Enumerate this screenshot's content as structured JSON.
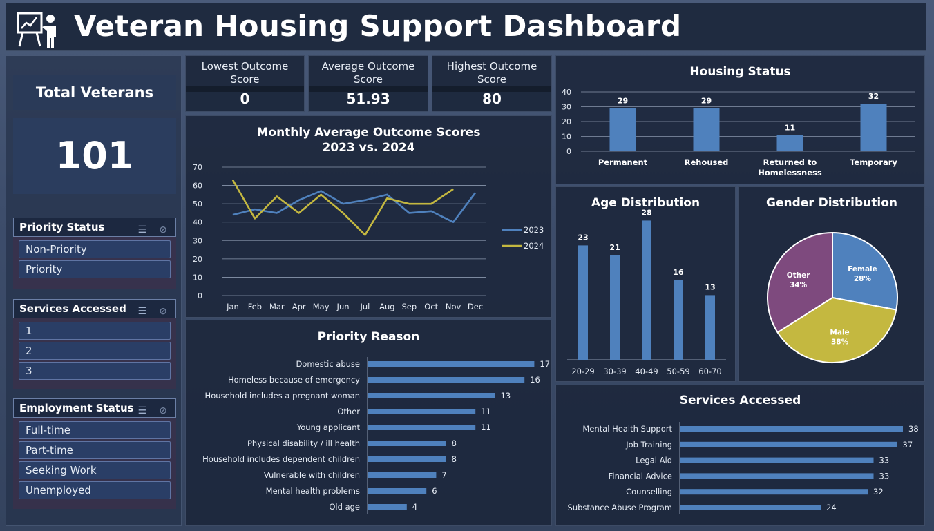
{
  "header": {
    "title": "Veteran Housing Support Dashboard"
  },
  "total": {
    "label": "Total Veterans",
    "value": "101"
  },
  "slicers": [
    {
      "title": "Priority Status",
      "items": [
        "Non-Priority",
        "Priority"
      ]
    },
    {
      "title": "Services Accessed",
      "items": [
        "1",
        "2",
        "3"
      ]
    },
    {
      "title": "Employment Status",
      "items": [
        "Full-time",
        "Part-time",
        "Seeking Work",
        "Unemployed"
      ]
    }
  ],
  "kpis": [
    {
      "label": "Lowest Outcome Score",
      "value": "0"
    },
    {
      "label": "Average Outcome Score",
      "value": "51.93"
    },
    {
      "label": "Highest Outcome Score",
      "value": "80"
    }
  ],
  "chart_data": [
    {
      "type": "line",
      "title": "Monthly Average Outcome Scores",
      "subtitle": "2023 vs. 2024",
      "categories": [
        "Jan",
        "Feb",
        "Mar",
        "Apr",
        "May",
        "Jun",
        "Jul",
        "Aug",
        "Sep",
        "Oct",
        "Nov",
        "Dec"
      ],
      "ylim": [
        0,
        70
      ],
      "yticks": [
        0,
        10,
        20,
        30,
        40,
        50,
        60,
        70
      ],
      "legend": "right",
      "series": [
        {
          "name": "2023",
          "color": "#4f81bd",
          "values": [
            44,
            47,
            45,
            52,
            57,
            50,
            52,
            55,
            45,
            46,
            40,
            56
          ]
        },
        {
          "name": "2024",
          "color": "#c4b840",
          "values": [
            63,
            42,
            54,
            45,
            55,
            45,
            33,
            53,
            50,
            50,
            58,
            null
          ]
        }
      ]
    },
    {
      "type": "bar",
      "title": "Housing Status",
      "categories": [
        "Permanent",
        "Rehoused",
        "Returned to Homelessness",
        "Temporary"
      ],
      "values": [
        29,
        29,
        11,
        32
      ],
      "ylim": [
        0,
        40
      ],
      "yticks": [
        0,
        10,
        20,
        30,
        40
      ],
      "color": "#4f81bd"
    },
    {
      "type": "bar",
      "title": "Age Distribution",
      "categories": [
        "20-29",
        "30-39",
        "40-49",
        "50-59",
        "60-70"
      ],
      "values": [
        23,
        21,
        28,
        16,
        13
      ],
      "color": "#4f81bd"
    },
    {
      "type": "pie",
      "title": "Gender Distribution",
      "slices": [
        {
          "label": "Female",
          "pct": "28%",
          "value": 28,
          "color": "#4f81bd"
        },
        {
          "label": "Male",
          "pct": "38%",
          "value": 38,
          "color": "#c4b840"
        },
        {
          "label": "Other",
          "pct": "34%",
          "value": 34,
          "color": "#7e4a7e"
        }
      ]
    },
    {
      "type": "bar",
      "orientation": "horizontal",
      "title": "Priority Reason",
      "categories": [
        "Domestic abuse",
        "Homeless because of emergency",
        "Household includes a pregnant woman",
        "Other",
        "Young applicant",
        "Physical disability / ill health",
        "Household includes dependent children",
        "Vulnerable with children",
        "Mental health problems",
        "Old age"
      ],
      "values": [
        17,
        16,
        13,
        11,
        11,
        8,
        8,
        7,
        6,
        4
      ],
      "color": "#4f81bd"
    },
    {
      "type": "bar",
      "orientation": "horizontal",
      "title": "Services Accessed",
      "categories": [
        "Mental Health Support",
        "Job Training",
        "Legal Aid",
        "Financial Advice",
        "Counselling",
        "Substance Abuse Program"
      ],
      "values": [
        38,
        37,
        33,
        33,
        32,
        24
      ],
      "color": "#4f81bd"
    }
  ]
}
